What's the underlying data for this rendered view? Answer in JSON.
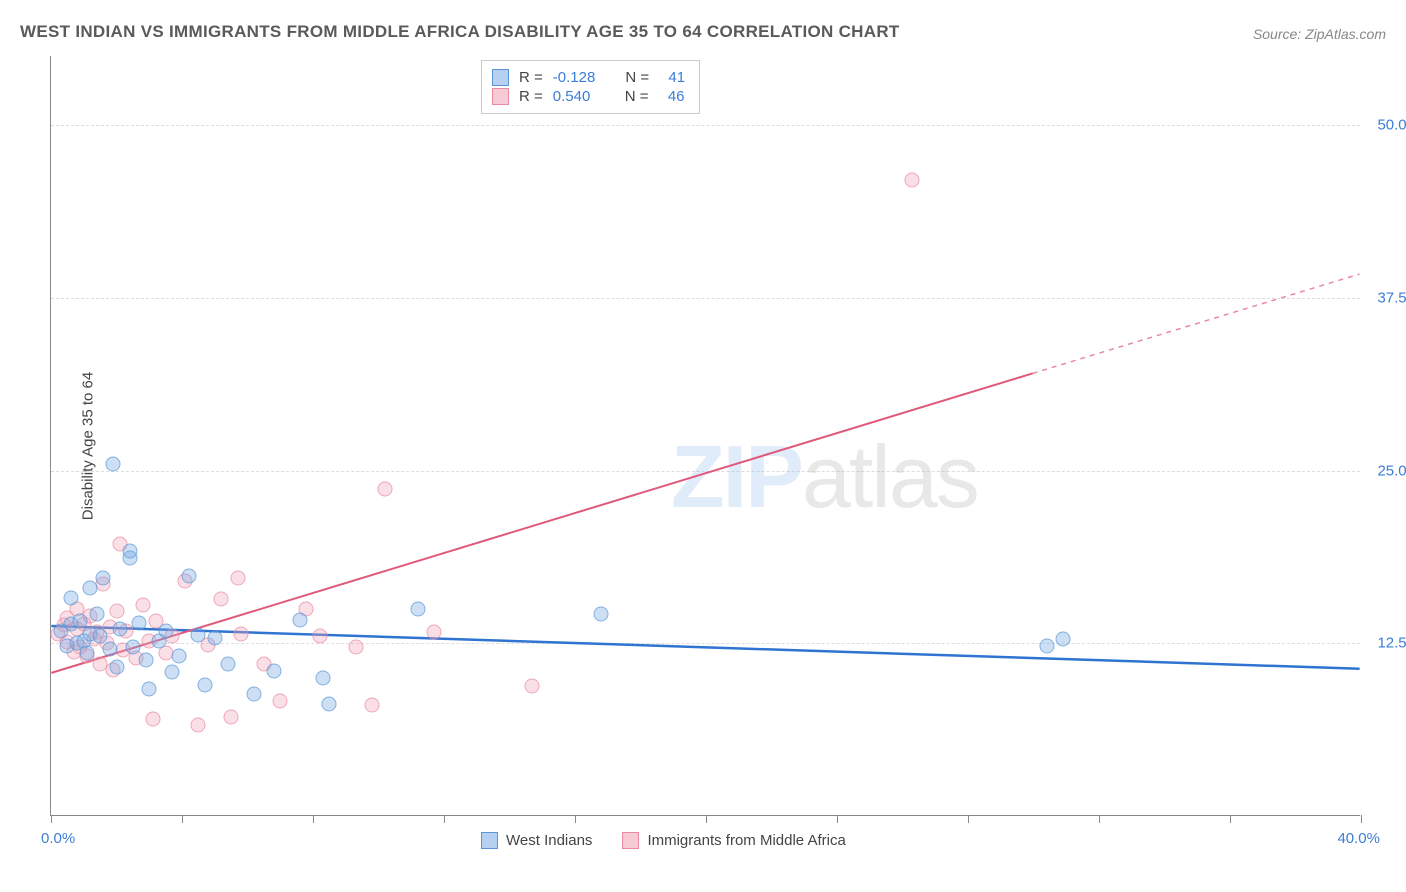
{
  "title": "WEST INDIAN VS IMMIGRANTS FROM MIDDLE AFRICA DISABILITY AGE 35 TO 64 CORRELATION CHART",
  "source": "Source: ZipAtlas.com",
  "ylabel": "Disability Age 35 to 64",
  "watermark_bold": "ZIP",
  "watermark_thin": "atlas",
  "chart": {
    "type": "scatter",
    "xlim": [
      0,
      40
    ],
    "ylim": [
      0,
      55
    ],
    "x_ticks": [
      0,
      4,
      8,
      12,
      16,
      20,
      24,
      28,
      32,
      36,
      40
    ],
    "x_first_label": "0.0%",
    "x_last_label": "40.0%",
    "y_grid": [
      {
        "v": 12.5,
        "label": "12.5%"
      },
      {
        "v": 25.0,
        "label": "25.0%"
      },
      {
        "v": 37.5,
        "label": "37.5%"
      },
      {
        "v": 50.0,
        "label": "50.0%"
      }
    ],
    "background_color": "#ffffff",
    "grid_color": "#dddddd",
    "axis_color": "#888888",
    "label_fontsize": 15,
    "marker_radius": 7.5
  },
  "series1": {
    "name": "West Indians",
    "r_label": "R =",
    "r_value": "-0.128",
    "n_label": "N =",
    "n_value": "41",
    "color_fill": "#78aae6",
    "color_stroke": "#5a95d6",
    "line": {
      "x1": 0,
      "y1": 13.7,
      "x2": 40,
      "y2": 10.6,
      "width": 2.5,
      "dash": "none"
    },
    "points": [
      [
        0.3,
        13.4
      ],
      [
        0.5,
        12.3
      ],
      [
        0.6,
        13.9
      ],
      [
        0.6,
        15.8
      ],
      [
        0.8,
        12.5
      ],
      [
        0.9,
        14.1
      ],
      [
        1.0,
        12.7
      ],
      [
        1.1,
        11.8
      ],
      [
        1.2,
        16.5
      ],
      [
        1.2,
        13.2
      ],
      [
        1.4,
        14.6
      ],
      [
        1.5,
        13.0
      ],
      [
        1.6,
        17.2
      ],
      [
        1.8,
        12.1
      ],
      [
        1.9,
        25.5
      ],
      [
        2.0,
        10.8
      ],
      [
        2.1,
        13.5
      ],
      [
        2.4,
        18.7
      ],
      [
        2.4,
        19.2
      ],
      [
        2.5,
        12.2
      ],
      [
        2.7,
        14.0
      ],
      [
        2.9,
        11.3
      ],
      [
        3.0,
        9.2
      ],
      [
        3.3,
        12.7
      ],
      [
        3.5,
        13.4
      ],
      [
        3.7,
        10.4
      ],
      [
        3.9,
        11.6
      ],
      [
        4.2,
        17.4
      ],
      [
        4.5,
        13.1
      ],
      [
        4.7,
        9.5
      ],
      [
        5.0,
        12.9
      ],
      [
        5.4,
        11.0
      ],
      [
        6.2,
        8.8
      ],
      [
        6.8,
        10.5
      ],
      [
        7.6,
        14.2
      ],
      [
        8.3,
        10.0
      ],
      [
        8.5,
        8.1
      ],
      [
        11.2,
        15.0
      ],
      [
        16.8,
        14.6
      ],
      [
        30.4,
        12.3
      ],
      [
        30.9,
        12.8
      ]
    ]
  },
  "series2": {
    "name": "Immigrants from Middle Africa",
    "r_label": "R =",
    "r_value": "0.540",
    "n_label": "N =",
    "n_value": "46",
    "color_fill": "#f0a0b4",
    "color_stroke": "#e88aa0",
    "line_solid": {
      "x1": 0,
      "y1": 10.3,
      "x2": 30,
      "y2": 32.0,
      "width": 2,
      "dash": "none"
    },
    "line_dashed": {
      "x1": 30,
      "y1": 32.0,
      "x2": 40,
      "y2": 39.2,
      "width": 1.5,
      "dash": "5,5"
    },
    "points": [
      [
        0.2,
        13.2
      ],
      [
        0.4,
        13.8
      ],
      [
        0.5,
        12.6
      ],
      [
        0.5,
        14.3
      ],
      [
        0.7,
        11.9
      ],
      [
        0.8,
        13.5
      ],
      [
        0.8,
        15.0
      ],
      [
        0.9,
        12.2
      ],
      [
        1.0,
        13.9
      ],
      [
        1.1,
        11.6
      ],
      [
        1.2,
        14.5
      ],
      [
        1.3,
        12.8
      ],
      [
        1.4,
        13.3
      ],
      [
        1.5,
        11.0
      ],
      [
        1.6,
        16.8
      ],
      [
        1.7,
        12.5
      ],
      [
        1.8,
        13.7
      ],
      [
        1.9,
        10.6
      ],
      [
        2.0,
        14.8
      ],
      [
        2.1,
        19.7
      ],
      [
        2.2,
        12.0
      ],
      [
        2.3,
        13.4
      ],
      [
        2.6,
        11.4
      ],
      [
        2.8,
        15.3
      ],
      [
        3.0,
        12.7
      ],
      [
        3.1,
        7.0
      ],
      [
        3.2,
        14.1
      ],
      [
        3.5,
        11.8
      ],
      [
        3.7,
        13.0
      ],
      [
        4.1,
        17.0
      ],
      [
        4.5,
        6.6
      ],
      [
        4.8,
        12.4
      ],
      [
        5.2,
        15.7
      ],
      [
        5.5,
        7.2
      ],
      [
        5.7,
        17.2
      ],
      [
        5.8,
        13.2
      ],
      [
        6.5,
        11.0
      ],
      [
        7.0,
        8.3
      ],
      [
        7.8,
        15.0
      ],
      [
        8.2,
        13.0
      ],
      [
        9.3,
        12.2
      ],
      [
        9.8,
        8.0
      ],
      [
        10.2,
        23.7
      ],
      [
        11.7,
        13.3
      ],
      [
        14.7,
        9.4
      ],
      [
        26.3,
        46.0
      ]
    ]
  },
  "legend": {
    "item1": "West Indians",
    "item2": "Immigrants from Middle Africa"
  }
}
